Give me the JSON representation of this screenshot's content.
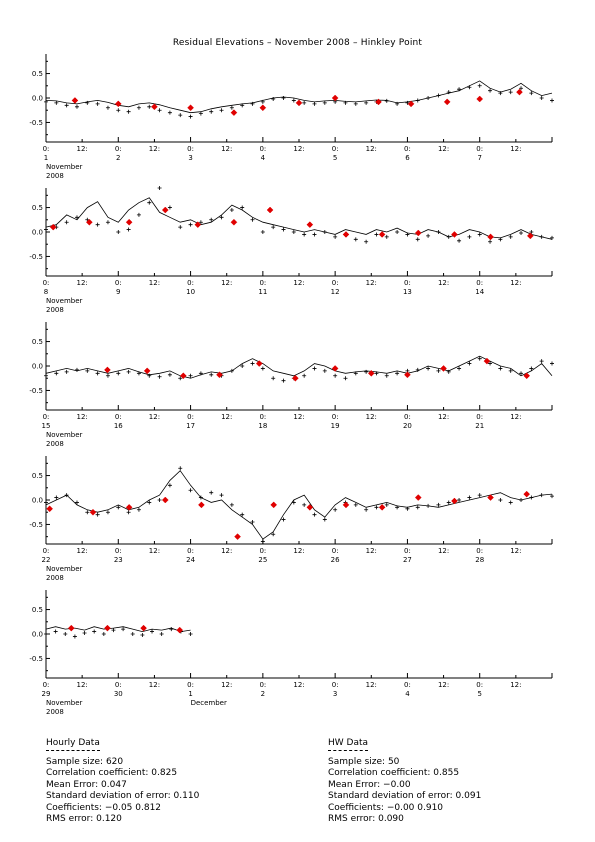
{
  "title": "Residual Elevations – November 2008 – Hinkley Point",
  "ytick_labels": [
    "0.5",
    "0.0",
    "-0.5"
  ],
  "chart_data": [
    {
      "type": "line",
      "ylim": [
        -0.9,
        0.9
      ],
      "day_labels": [
        "1",
        "2",
        "3",
        "4",
        "5",
        "6",
        "7"
      ],
      "month_label": "November",
      "year_label": "2008",
      "series": [
        {
          "marker": "line",
          "values": [
            -0.05,
            -0.06,
            -0.1,
            -0.12,
            -0.08,
            -0.05,
            -0.09,
            -0.15,
            -0.18,
            -0.12,
            -0.1,
            -0.14,
            -0.2,
            -0.25,
            -0.3,
            -0.28,
            -0.22,
            -0.18,
            -0.15,
            -0.12,
            -0.1,
            -0.05,
            0.0,
            0.02,
            0.0,
            -0.05,
            -0.08,
            -0.06,
            -0.05,
            -0.07,
            -0.08,
            -0.06,
            -0.04,
            -0.05,
            -0.1,
            -0.08,
            -0.05,
            0.0,
            0.05,
            0.1,
            0.15,
            0.25,
            0.35,
            0.2,
            0.12,
            0.18,
            0.3,
            0.15,
            0.05,
            0.1
          ]
        },
        {
          "marker": "plus",
          "values": [
            -0.08,
            -0.1,
            -0.15,
            -0.18,
            -0.1,
            -0.12,
            -0.2,
            -0.25,
            -0.28,
            -0.2,
            -0.18,
            -0.25,
            -0.3,
            -0.35,
            -0.38,
            -0.32,
            -0.28,
            -0.25,
            -0.2,
            -0.15,
            -0.12,
            -0.08,
            -0.02,
            0.0,
            -0.05,
            -0.1,
            -0.12,
            -0.1,
            -0.08,
            -0.1,
            -0.12,
            -0.1,
            -0.08,
            -0.06,
            -0.12,
            -0.1,
            -0.05,
            0.0,
            0.05,
            0.12,
            0.18,
            0.22,
            0.25,
            0.15,
            0.1,
            0.12,
            0.2,
            0.1,
            0.0,
            -0.05
          ]
        },
        {
          "marker": "diamond",
          "values": [
            {
              "t": 0.8,
              "v": -0.05
            },
            {
              "t": 2.0,
              "v": -0.12
            },
            {
              "t": 3.0,
              "v": -0.18
            },
            {
              "t": 4.0,
              "v": -0.2
            },
            {
              "t": 5.2,
              "v": -0.3
            },
            {
              "t": 6.0,
              "v": -0.2
            },
            {
              "t": 7.0,
              "v": -0.1
            },
            {
              "t": 8.0,
              "v": 0.0
            },
            {
              "t": 9.2,
              "v": -0.08
            },
            {
              "t": 10.1,
              "v": -0.12
            },
            {
              "t": 11.1,
              "v": -0.08
            },
            {
              "t": 12.0,
              "v": -0.02
            },
            {
              "t": 13.1,
              "v": 0.12
            }
          ]
        }
      ]
    },
    {
      "type": "line",
      "ylim": [
        -0.9,
        0.9
      ],
      "day_labels": [
        "8",
        "9",
        "10",
        "11",
        "12",
        "13",
        "14"
      ],
      "month_label": "November",
      "year_label": "2008",
      "series": [
        {
          "marker": "line",
          "values": [
            0.1,
            0.15,
            0.35,
            0.25,
            0.5,
            0.62,
            0.3,
            0.2,
            0.45,
            0.6,
            0.7,
            0.4,
            0.3,
            0.2,
            0.25,
            0.15,
            0.2,
            0.35,
            0.55,
            0.45,
            0.3,
            0.2,
            0.15,
            0.1,
            0.05,
            0.0,
            0.05,
            0.0,
            -0.05,
            0.05,
            0.0,
            -0.05,
            0.05,
            0.0,
            0.08,
            -0.02,
            -0.05,
            0.05,
            0.0,
            -0.1,
            -0.05,
            0.05,
            0.0,
            -0.1,
            -0.12,
            -0.05,
            0.05,
            -0.05,
            -0.1,
            -0.15
          ]
        },
        {
          "marker": "plus",
          "values": [
            0.05,
            0.1,
            0.2,
            0.3,
            0.25,
            0.15,
            0.2,
            0.0,
            0.05,
            0.35,
            0.6,
            0.9,
            0.5,
            0.1,
            0.15,
            0.2,
            0.25,
            0.3,
            0.45,
            0.5,
            0.25,
            0.0,
            0.1,
            0.05,
            0.0,
            -0.05,
            -0.05,
            0.0,
            -0.1,
            -0.05,
            -0.15,
            -0.2,
            -0.05,
            -0.1,
            0.0,
            -0.05,
            -0.15,
            -0.08,
            0.0,
            -0.1,
            -0.18,
            -0.1,
            -0.05,
            -0.2,
            -0.15,
            -0.1,
            -0.02,
            0.0,
            -0.1,
            -0.12
          ]
        },
        {
          "marker": "diamond",
          "values": [
            {
              "t": 0.2,
              "v": 0.1
            },
            {
              "t": 1.2,
              "v": 0.2
            },
            {
              "t": 2.3,
              "v": 0.2
            },
            {
              "t": 3.3,
              "v": 0.45
            },
            {
              "t": 4.2,
              "v": 0.15
            },
            {
              "t": 5.2,
              "v": 0.2
            },
            {
              "t": 6.2,
              "v": 0.45
            },
            {
              "t": 7.3,
              "v": 0.15
            },
            {
              "t": 8.3,
              "v": -0.05
            },
            {
              "t": 9.3,
              "v": -0.05
            },
            {
              "t": 10.3,
              "v": -0.02
            },
            {
              "t": 11.3,
              "v": -0.05
            },
            {
              "t": 12.3,
              "v": -0.1
            },
            {
              "t": 13.4,
              "v": -0.08
            }
          ]
        }
      ]
    },
    {
      "type": "line",
      "ylim": [
        -0.9,
        0.9
      ],
      "day_labels": [
        "15",
        "16",
        "17",
        "18",
        "19",
        "20",
        "21"
      ],
      "month_label": "November",
      "year_label": "2008",
      "series": [
        {
          "marker": "line",
          "values": [
            -0.15,
            -0.1,
            -0.05,
            -0.1,
            -0.05,
            -0.1,
            -0.15,
            -0.1,
            -0.05,
            -0.12,
            -0.18,
            -0.15,
            -0.1,
            -0.2,
            -0.25,
            -0.18,
            -0.12,
            -0.15,
            -0.1,
            0.05,
            0.15,
            0.05,
            -0.1,
            -0.15,
            -0.2,
            -0.1,
            0.05,
            0.0,
            -0.1,
            -0.15,
            -0.12,
            -0.1,
            -0.12,
            -0.15,
            -0.1,
            -0.15,
            -0.1,
            0.0,
            -0.05,
            -0.1,
            0.0,
            0.1,
            0.2,
            0.1,
            0.0,
            -0.05,
            -0.2,
            -0.1,
            0.05,
            -0.2
          ]
        },
        {
          "marker": "plus",
          "values": [
            -0.2,
            -0.15,
            -0.12,
            -0.08,
            -0.1,
            -0.15,
            -0.2,
            -0.15,
            -0.12,
            -0.15,
            -0.2,
            -0.22,
            -0.18,
            -0.25,
            -0.2,
            -0.15,
            -0.18,
            -0.2,
            -0.1,
            0.0,
            0.05,
            -0.05,
            -0.25,
            -0.3,
            -0.25,
            -0.2,
            -0.05,
            -0.1,
            -0.2,
            -0.25,
            -0.15,
            -0.12,
            -0.15,
            -0.2,
            -0.15,
            -0.1,
            -0.08,
            -0.05,
            -0.1,
            -0.12,
            -0.05,
            0.05,
            0.15,
            0.05,
            -0.05,
            -0.1,
            -0.15,
            -0.05,
            0.1,
            0.05
          ]
        },
        {
          "marker": "diamond",
          "values": [
            {
              "t": 1.7,
              "v": -0.08
            },
            {
              "t": 2.8,
              "v": -0.1
            },
            {
              "t": 3.8,
              "v": -0.2
            },
            {
              "t": 4.8,
              "v": -0.18
            },
            {
              "t": 5.9,
              "v": 0.05
            },
            {
              "t": 6.9,
              "v": -0.25
            },
            {
              "t": 8.0,
              "v": -0.05
            },
            {
              "t": 9.0,
              "v": -0.15
            },
            {
              "t": 10.0,
              "v": -0.18
            },
            {
              "t": 11.0,
              "v": -0.05
            },
            {
              "t": 12.2,
              "v": 0.1
            },
            {
              "t": 13.3,
              "v": -0.2
            }
          ]
        }
      ]
    },
    {
      "type": "line",
      "ylim": [
        -0.9,
        0.9
      ],
      "day_labels": [
        "22",
        "23",
        "24",
        "25",
        "26",
        "27",
        "28"
      ],
      "month_label": "November",
      "year_label": "2008",
      "series": [
        {
          "marker": "line",
          "values": [
            -0.1,
            0.0,
            0.1,
            -0.1,
            -0.2,
            -0.25,
            -0.2,
            -0.1,
            -0.2,
            -0.15,
            0.0,
            0.1,
            0.4,
            0.6,
            0.3,
            0.05,
            -0.05,
            0.0,
            -0.2,
            -0.35,
            -0.5,
            -0.8,
            -0.65,
            -0.3,
            0.0,
            0.1,
            -0.2,
            -0.35,
            -0.1,
            0.05,
            -0.05,
            -0.15,
            -0.1,
            -0.05,
            -0.12,
            -0.15,
            -0.1,
            -0.12,
            -0.15,
            -0.1,
            -0.05,
            0.0,
            0.05,
            0.1,
            0.15,
            0.05,
            0.0,
            0.05,
            0.1,
            0.12
          ]
        },
        {
          "marker": "plus",
          "values": [
            -0.05,
            0.05,
            0.1,
            -0.05,
            -0.25,
            -0.3,
            -0.25,
            -0.15,
            -0.25,
            -0.2,
            -0.05,
            0.0,
            0.3,
            0.65,
            0.2,
            0.05,
            0.15,
            0.1,
            -0.1,
            -0.3,
            -0.45,
            -0.85,
            -0.7,
            -0.4,
            -0.05,
            -0.1,
            -0.3,
            -0.4,
            -0.2,
            -0.05,
            -0.1,
            -0.2,
            -0.15,
            -0.1,
            -0.15,
            -0.18,
            -0.15,
            -0.12,
            -0.1,
            -0.05,
            0.0,
            0.05,
            0.1,
            0.05,
            0.0,
            -0.05,
            0.0,
            0.05,
            0.1,
            0.08
          ]
        },
        {
          "marker": "diamond",
          "values": [
            {
              "t": 0.1,
              "v": -0.18
            },
            {
              "t": 1.3,
              "v": -0.25
            },
            {
              "t": 2.3,
              "v": -0.15
            },
            {
              "t": 3.3,
              "v": 0.0
            },
            {
              "t": 4.3,
              "v": -0.1
            },
            {
              "t": 5.3,
              "v": -0.75
            },
            {
              "t": 6.3,
              "v": -0.1
            },
            {
              "t": 7.3,
              "v": -0.15
            },
            {
              "t": 8.3,
              "v": -0.1
            },
            {
              "t": 9.3,
              "v": -0.15
            },
            {
              "t": 10.3,
              "v": 0.05
            },
            {
              "t": 11.3,
              "v": -0.02
            },
            {
              "t": 12.3,
              "v": 0.05
            },
            {
              "t": 13.3,
              "v": 0.12
            }
          ]
        }
      ]
    },
    {
      "type": "line",
      "ylim": [
        -0.9,
        0.9
      ],
      "day_labels": [
        "29",
        "30",
        "1",
        "2",
        "3",
        "4",
        "5"
      ],
      "month_label": "November",
      "year_label": "2008",
      "month_label_2": "December",
      "data_end_day": 4,
      "series": [
        {
          "marker": "line",
          "values": [
            0.1,
            0.15,
            0.1,
            0.12,
            0.08,
            0.15,
            0.1,
            0.12,
            0.15,
            0.1,
            0.05,
            0.1,
            0.08,
            0.12,
            0.05,
            0.08
          ]
        },
        {
          "marker": "plus",
          "values": [
            0.0,
            0.05,
            0.0,
            -0.05,
            0.02,
            0.05,
            0.0,
            0.08,
            0.1,
            0.0,
            -0.02,
            0.05,
            0.0,
            0.1,
            0.05,
            0.0
          ]
        },
        {
          "marker": "diamond",
          "values": [
            {
              "t": 0.7,
              "v": 0.12
            },
            {
              "t": 1.7,
              "v": 0.12
            },
            {
              "t": 2.7,
              "v": 0.12
            },
            {
              "t": 3.7,
              "v": 0.08
            }
          ]
        }
      ]
    }
  ],
  "stats": {
    "hourly": {
      "header": "Hourly Data",
      "lines": [
        "Sample size: 620",
        "Correlation coefficient: 0.825",
        "Mean Error: 0.047",
        "Standard deviation of error: 0.110",
        "Coefficients: −0.05   0.812",
        "RMS error: 0.120"
      ]
    },
    "hw": {
      "header": "HW Data",
      "lines": [
        "Sample size: 50",
        "Correlation coefficient: 0.855",
        "Mean Error: −0.00",
        "Standard deviation of error: 0.091",
        "Coefficients: −0.00   0.910",
        "RMS error: 0.090"
      ]
    }
  }
}
